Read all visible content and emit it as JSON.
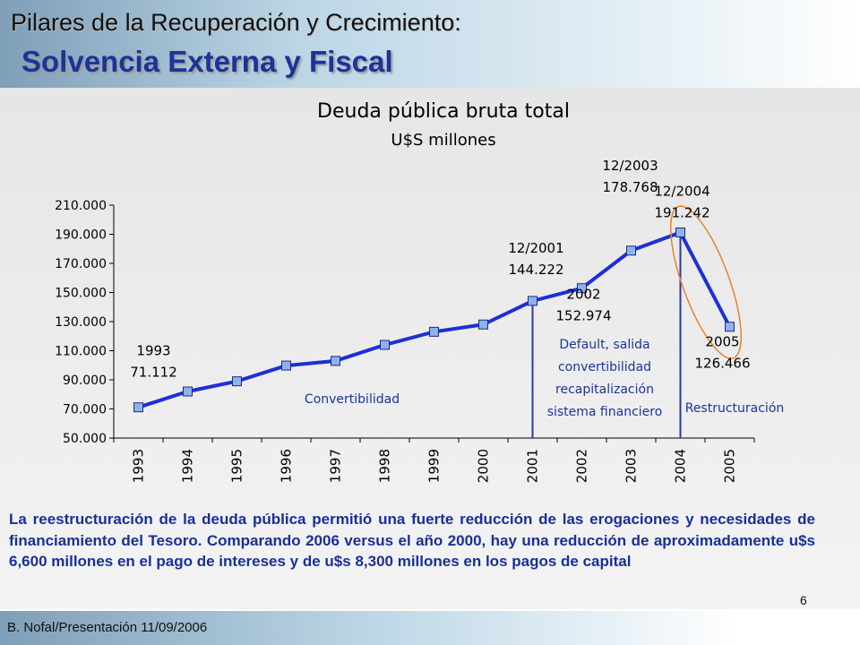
{
  "slide": {
    "title_line1": "Pilares de la Recuperación y Crecimiento:",
    "title_line2": "Solvencia Externa y Fiscal",
    "description": "La reestructuración de la deuda pública permitió una fuerte reducción de las erogaciones y necesidades de financiamiento del Tesoro. Comparando 2006 versus el año 2000, hay una reducción de aproximadamente u$s 6,600 millones en el pago de intereses y de u$s 8,300 millones en los pagos de capital",
    "footer": "B. Nofal/Presentación 11/09/2006",
    "page_number": "6"
  },
  "colors": {
    "title_blue": "#1c3399",
    "line": "#1e2fd6",
    "marker": "#8fb3e6",
    "marker_border": "#1a2a90",
    "divider": "#2a3aa0",
    "highlight_ellipse": "#e8822a"
  },
  "chart_data": {
    "type": "line",
    "title": "Deuda pública bruta total",
    "subtitle": "U$S millones",
    "categories": [
      "1993",
      "1994",
      "1995",
      "1996",
      "1997",
      "1998",
      "1999",
      "2000",
      "2001",
      "2002",
      "2003",
      "2004",
      "2005"
    ],
    "values": [
      71112,
      82000,
      89000,
      99800,
      103000,
      114000,
      123000,
      128000,
      144222,
      152974,
      178768,
      191242,
      126466
    ],
    "ylim": [
      50000,
      210000
    ],
    "yticks": [
      "50.000",
      "70.000",
      "90.000",
      "110.000",
      "130.000",
      "150.000",
      "170.000",
      "190.000",
      "210.000"
    ],
    "ytick_values": [
      50000,
      70000,
      90000,
      110000,
      130000,
      150000,
      170000,
      190000,
      210000
    ],
    "grid": false,
    "annotations": [
      {
        "lines": [
          "1993",
          "71.112"
        ],
        "index": 0
      },
      {
        "lines": [
          "12/2001",
          "144.222"
        ],
        "index": 8
      },
      {
        "lines": [
          "2002",
          "152.974"
        ],
        "index": 9
      },
      {
        "lines": [
          "12/2003",
          "178.768"
        ],
        "index": 10
      },
      {
        "lines": [
          "12/2004",
          "191.242"
        ],
        "index": 11
      },
      {
        "lines": [
          "2005",
          "126.466"
        ],
        "index": 12
      }
    ],
    "period_labels": {
      "convertibility": "Convertibilidad",
      "default_lines": [
        "Default, salida",
        "convertibilidad",
        "recapitalización",
        "sistema financiero"
      ],
      "restructuring": "Restructuración"
    }
  }
}
